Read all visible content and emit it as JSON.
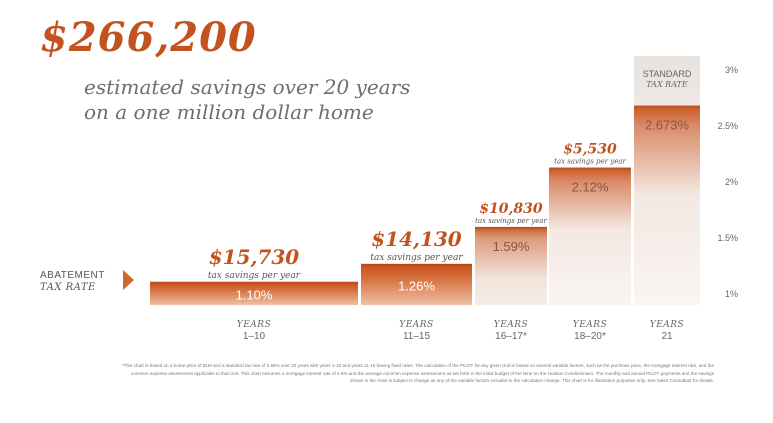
{
  "headline": "$266,200",
  "subheadline_line1": "estimated savings over 20 years",
  "subheadline_line2": "on a one million dollar home",
  "abatement_label_line1": "ABATEMENT",
  "abatement_label_line2": "TAX RATE",
  "footnote": "*This chart is based on a home price of $1M and a standard tax rate of 2.68% over 20 years with years 1-10 and years 11-15 having fixed rates. The calculation of the PILOT for any given Unit is based on several variable factors, such as the purchase price, the mortgage interest rate, and the common expense assessment applicable to that Unit. This chart assumes a mortgage interest rate of 4.5% and the average common expense assessment as set forth in the initial budget of the Nine on the Hudson Condominium. The monthly and annual PILOT payments and the savings shown in the chart is subject to change as any of the variable factors included in the calculation change. This chart is for illustration purposes only. See Sales Consultant for details.",
  "colors": {
    "accent": "#c2531f",
    "bar_dark": "#c9581f",
    "bar_light": "#f2e6df",
    "text_gray": "#6e6e6e"
  },
  "chart_data": {
    "type": "bar",
    "title": "",
    "xlabel": "",
    "ylabel": "",
    "ylim": [
      0.8,
      3.0
    ],
    "yticks": [
      "1%",
      "1.5%",
      "2%",
      "2.5%",
      "3%"
    ],
    "ytick_values": [
      1.0,
      1.5,
      2.0,
      2.5,
      3.0
    ],
    "grid": false,
    "categories": [
      {
        "years_word": "YEARS",
        "range": "1–10"
      },
      {
        "years_word": "YEARS",
        "range": "11–15"
      },
      {
        "years_word": "YEARS",
        "range": "16–17*"
      },
      {
        "years_word": "YEARS",
        "range": "18–20*"
      },
      {
        "years_word": "YEARS",
        "range": "21"
      }
    ],
    "values": [
      1.1,
      1.26,
      1.59,
      2.12,
      2.673
    ],
    "value_labels": [
      "1.10%",
      "1.26%",
      "1.59%",
      "2.12%",
      "2.673%"
    ],
    "savings": [
      "$15,730",
      "$14,130",
      "$10,830",
      "$5,530",
      ""
    ],
    "savings_caption": "tax savings per year",
    "standard_label_line1": "STANDARD",
    "standard_label_line2": "TAX RATE"
  }
}
